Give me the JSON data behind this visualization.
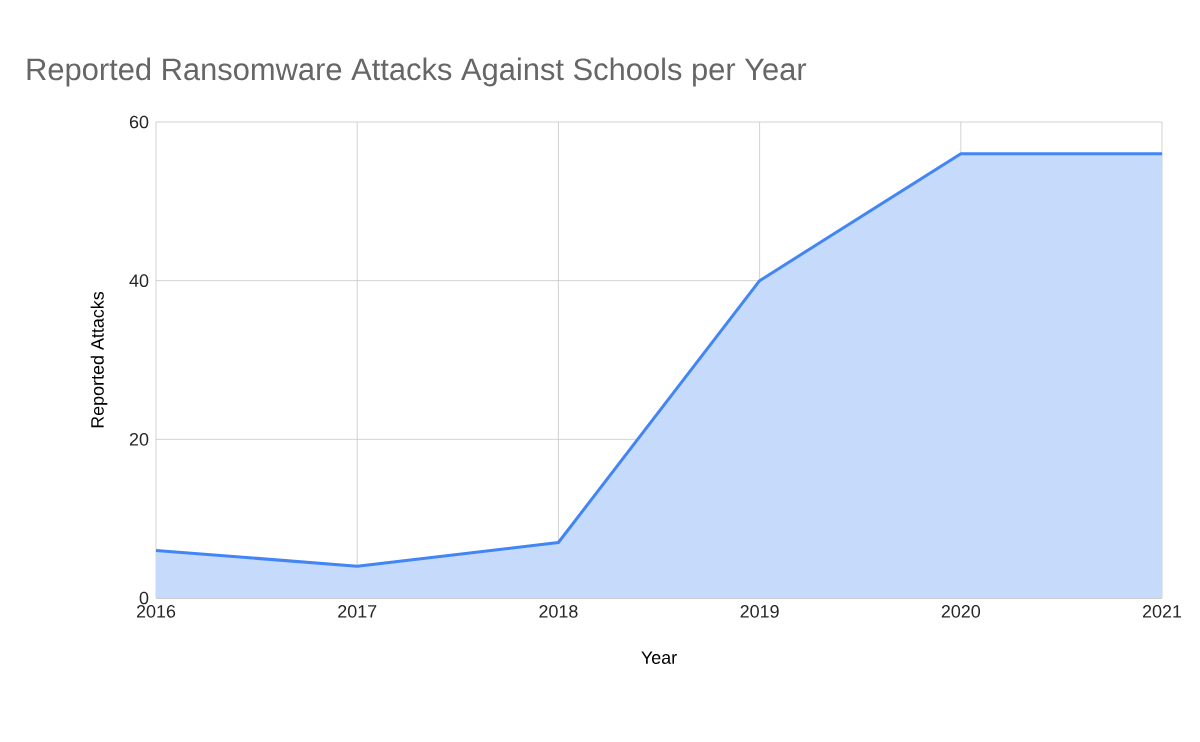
{
  "chart_data": {
    "type": "area",
    "title": "Reported Ransomware Attacks Against Schools per Year",
    "xlabel": "Year",
    "ylabel": "Reported Attacks",
    "x": [
      2016,
      2017,
      2018,
      2019,
      2020,
      2021
    ],
    "series": [
      {
        "color": "#4285f4",
        "values": [
          6,
          4,
          7,
          40,
          56,
          56
        ]
      }
    ],
    "xlim": [
      2016,
      2021
    ],
    "xticks": [
      2016,
      2017,
      2018,
      2019,
      2020,
      2021
    ],
    "ylim": [
      0,
      60
    ],
    "yticks": [
      0,
      20,
      40,
      60
    ],
    "grid": true
  }
}
